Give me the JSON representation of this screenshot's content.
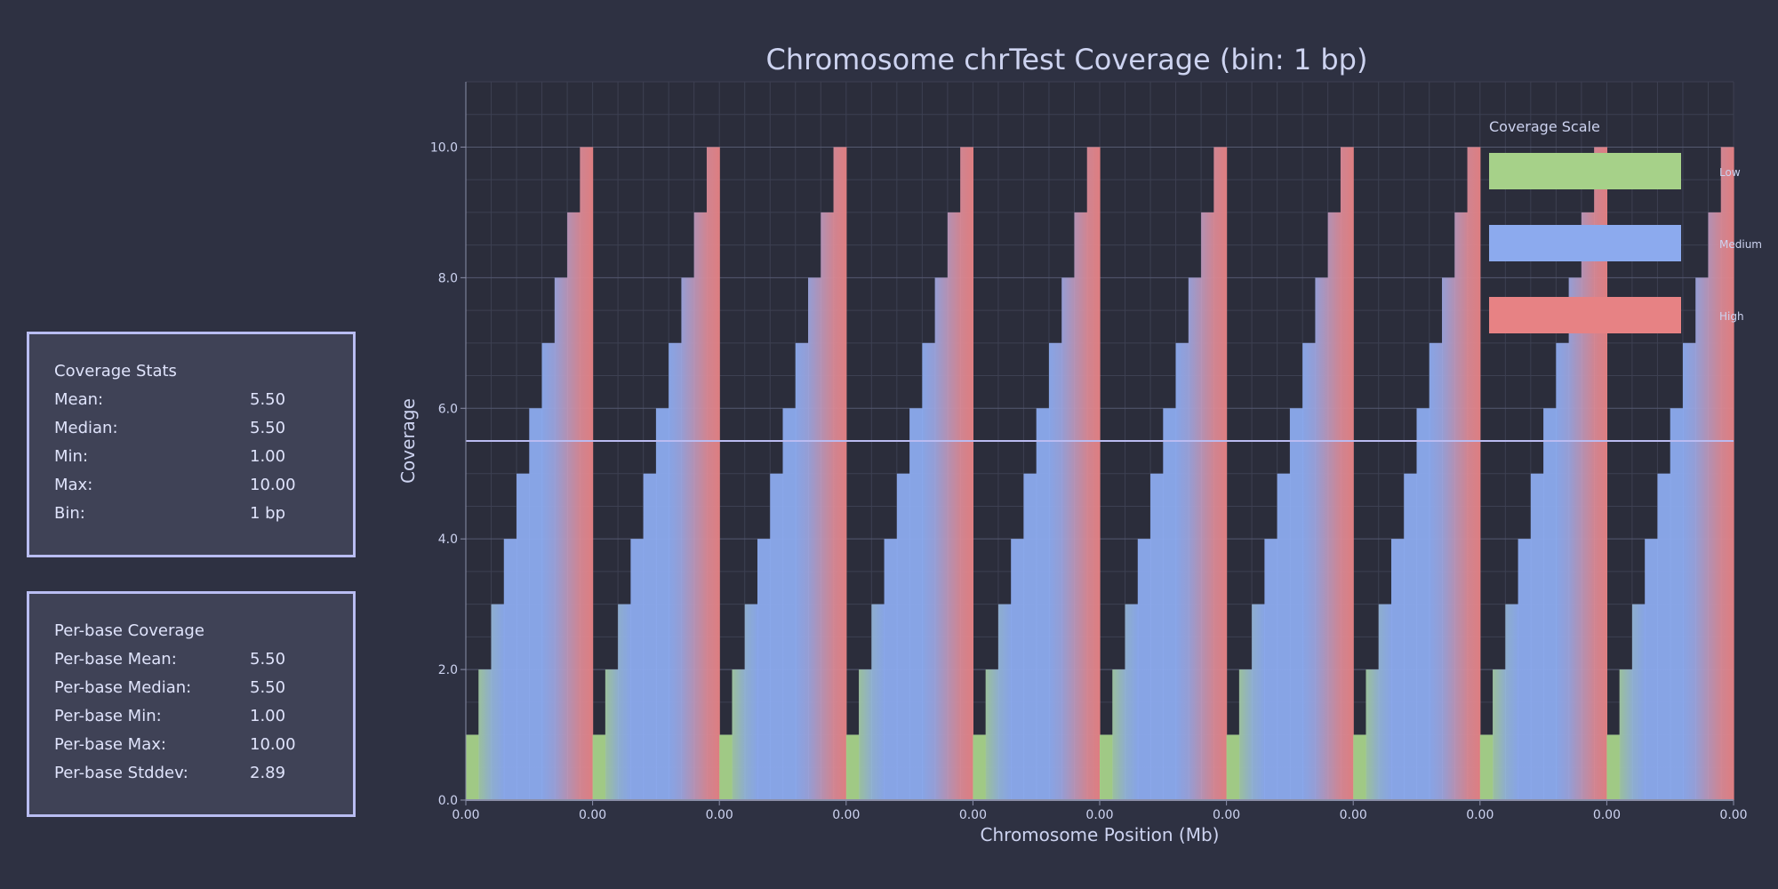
{
  "stats_panel": {
    "title": "Coverage Stats",
    "rows": [
      {
        "label": "Mean:",
        "value": "5.50"
      },
      {
        "label": "Median:",
        "value": "5.50"
      },
      {
        "label": "Min:",
        "value": "1.00"
      },
      {
        "label": "Max:",
        "value": "10.00"
      },
      {
        "label": "Bin:",
        "value": "1 bp"
      }
    ]
  },
  "perbase_panel": {
    "title": "Per-base Coverage",
    "rows": [
      {
        "label": "Per-base Mean:",
        "value": "5.50"
      },
      {
        "label": "Per-base Median:",
        "value": "5.50"
      },
      {
        "label": "Per-base Min:",
        "value": "1.00"
      },
      {
        "label": "Per-base Max:",
        "value": "10.00"
      },
      {
        "label": "Per-base Stddev:",
        "value": "2.89"
      }
    ]
  },
  "colors": {
    "background": "#2e3142",
    "plot_background": "#2b2d3b",
    "low": "#a6d189",
    "medium": "#8caaee",
    "high": "#e78284",
    "mean_line": "#babbf1",
    "text": "#cdd3f0"
  },
  "chart_data": {
    "type": "bar",
    "title": "Chromosome chrTest Coverage (bin: 1 bp)",
    "xlabel": "Chromosome Position (Mb)",
    "ylabel": "Coverage",
    "x_tick_labels": [
      "0.00",
      "0.00",
      "0.00",
      "0.00",
      "0.00",
      "0.00",
      "0.00",
      "0.00",
      "0.00",
      "0.00",
      "0.00"
    ],
    "y_ticks": [
      0,
      2,
      4,
      6,
      8,
      10
    ],
    "y_tick_labels": [
      "0.0",
      "2.0",
      "4.0",
      "6.0",
      "8.0",
      "10.0"
    ],
    "ylim": [
      0,
      11
    ],
    "grid": true,
    "mean_line": 5.5,
    "values": [
      1,
      2,
      3,
      4,
      5,
      6,
      7,
      8,
      9,
      10,
      1,
      2,
      3,
      4,
      5,
      6,
      7,
      8,
      9,
      10,
      1,
      2,
      3,
      4,
      5,
      6,
      7,
      8,
      9,
      10,
      1,
      2,
      3,
      4,
      5,
      6,
      7,
      8,
      9,
      10,
      1,
      2,
      3,
      4,
      5,
      6,
      7,
      8,
      9,
      10,
      1,
      2,
      3,
      4,
      5,
      6,
      7,
      8,
      9,
      10,
      1,
      2,
      3,
      4,
      5,
      6,
      7,
      8,
      9,
      10,
      1,
      2,
      3,
      4,
      5,
      6,
      7,
      8,
      9,
      10,
      1,
      2,
      3,
      4,
      5,
      6,
      7,
      8,
      9,
      10,
      1,
      2,
      3,
      4,
      5,
      6,
      7,
      8,
      9,
      10
    ],
    "legend": {
      "title": "Coverage Scale",
      "position": "top-right",
      "entries": [
        {
          "label": "Low",
          "color": "#a6d189"
        },
        {
          "label": "Medium",
          "color": "#8caaee"
        },
        {
          "label": "High",
          "color": "#e78284"
        }
      ]
    }
  }
}
